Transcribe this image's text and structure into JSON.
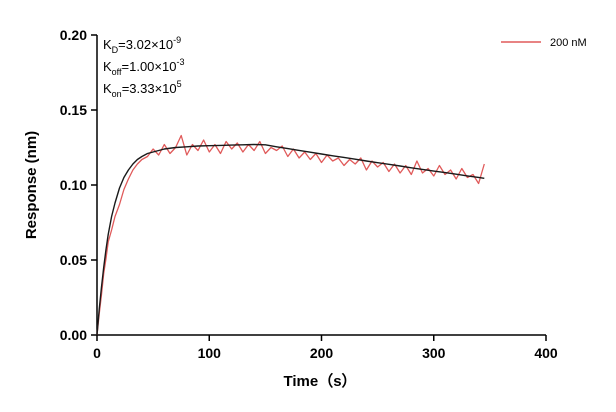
{
  "chart_data": {
    "type": "line",
    "xlabel": "Time（s）",
    "ylabel": "Response (nm)",
    "xlim": [
      0,
      400
    ],
    "ylim": [
      0,
      0.2
    ],
    "xticks": [
      "0",
      "100",
      "200",
      "300",
      "400"
    ],
    "yticks": [
      "0.00",
      "0.05",
      "0.10",
      "0.15",
      "0.20"
    ],
    "grid": false,
    "legend_position": "top-right",
    "annotations": [
      {
        "base": "K",
        "sub": "D",
        "rest": "=3.02×10",
        "sup": "-9"
      },
      {
        "base": "K",
        "sub": "off",
        "rest": "=1.00×10",
        "sup": "-3"
      },
      {
        "base": "K",
        "sub": "on",
        "rest": "=3.33×10",
        "sup": "5"
      }
    ],
    "series": [
      {
        "name": "200 nM",
        "color": "#e05a5a",
        "x": [
          0,
          2,
          4,
          6,
          8,
          10,
          13,
          16,
          20,
          24,
          28,
          32,
          36,
          40,
          45,
          50,
          55,
          60,
          65,
          70,
          75,
          80,
          85,
          90,
          95,
          100,
          105,
          110,
          115,
          120,
          125,
          130,
          135,
          140,
          145,
          150,
          155,
          160,
          165,
          170,
          175,
          180,
          185,
          190,
          195,
          200,
          205,
          210,
          215,
          220,
          225,
          230,
          235,
          240,
          245,
          250,
          255,
          260,
          265,
          270,
          275,
          280,
          285,
          290,
          295,
          300,
          305,
          310,
          315,
          320,
          325,
          330,
          335,
          340,
          345
        ],
        "y": [
          0.0,
          0.014,
          0.027,
          0.041,
          0.051,
          0.062,
          0.07,
          0.079,
          0.087,
          0.097,
          0.104,
          0.11,
          0.114,
          0.117,
          0.119,
          0.124,
          0.12,
          0.127,
          0.121,
          0.125,
          0.133,
          0.12,
          0.127,
          0.123,
          0.13,
          0.122,
          0.127,
          0.121,
          0.129,
          0.124,
          0.128,
          0.122,
          0.127,
          0.123,
          0.129,
          0.121,
          0.125,
          0.123,
          0.126,
          0.119,
          0.124,
          0.118,
          0.122,
          0.117,
          0.121,
          0.115,
          0.12,
          0.116,
          0.118,
          0.113,
          0.117,
          0.114,
          0.118,
          0.11,
          0.116,
          0.112,
          0.115,
          0.109,
          0.114,
          0.108,
          0.113,
          0.107,
          0.116,
          0.108,
          0.111,
          0.106,
          0.113,
          0.107,
          0.11,
          0.104,
          0.111,
          0.105,
          0.107,
          0.101,
          0.114
        ]
      },
      {
        "color": "#1a1a1a",
        "x": [
          0,
          2,
          4,
          6,
          8,
          10,
          13,
          16,
          20,
          24,
          28,
          32,
          36,
          40,
          45,
          50,
          55,
          60,
          70,
          80,
          90,
          100,
          110,
          120,
          130,
          140,
          150,
          160,
          170,
          180,
          190,
          200,
          210,
          220,
          230,
          240,
          250,
          260,
          270,
          280,
          290,
          300,
          310,
          320,
          330,
          340,
          345
        ],
        "y": [
          0.0,
          0.017,
          0.032,
          0.045,
          0.057,
          0.067,
          0.079,
          0.088,
          0.098,
          0.105,
          0.11,
          0.114,
          0.117,
          0.119,
          0.121,
          0.122,
          0.123,
          0.124,
          0.125,
          0.1255,
          0.126,
          0.1262,
          0.1264,
          0.1266,
          0.1268,
          0.127,
          0.1268,
          0.1255,
          0.1243,
          0.1231,
          0.1219,
          0.1207,
          0.1195,
          0.1184,
          0.1172,
          0.116,
          0.1149,
          0.1138,
          0.1127,
          0.1115,
          0.1104,
          0.1093,
          0.1083,
          0.1072,
          0.1061,
          0.1051,
          0.1045
        ]
      }
    ]
  }
}
